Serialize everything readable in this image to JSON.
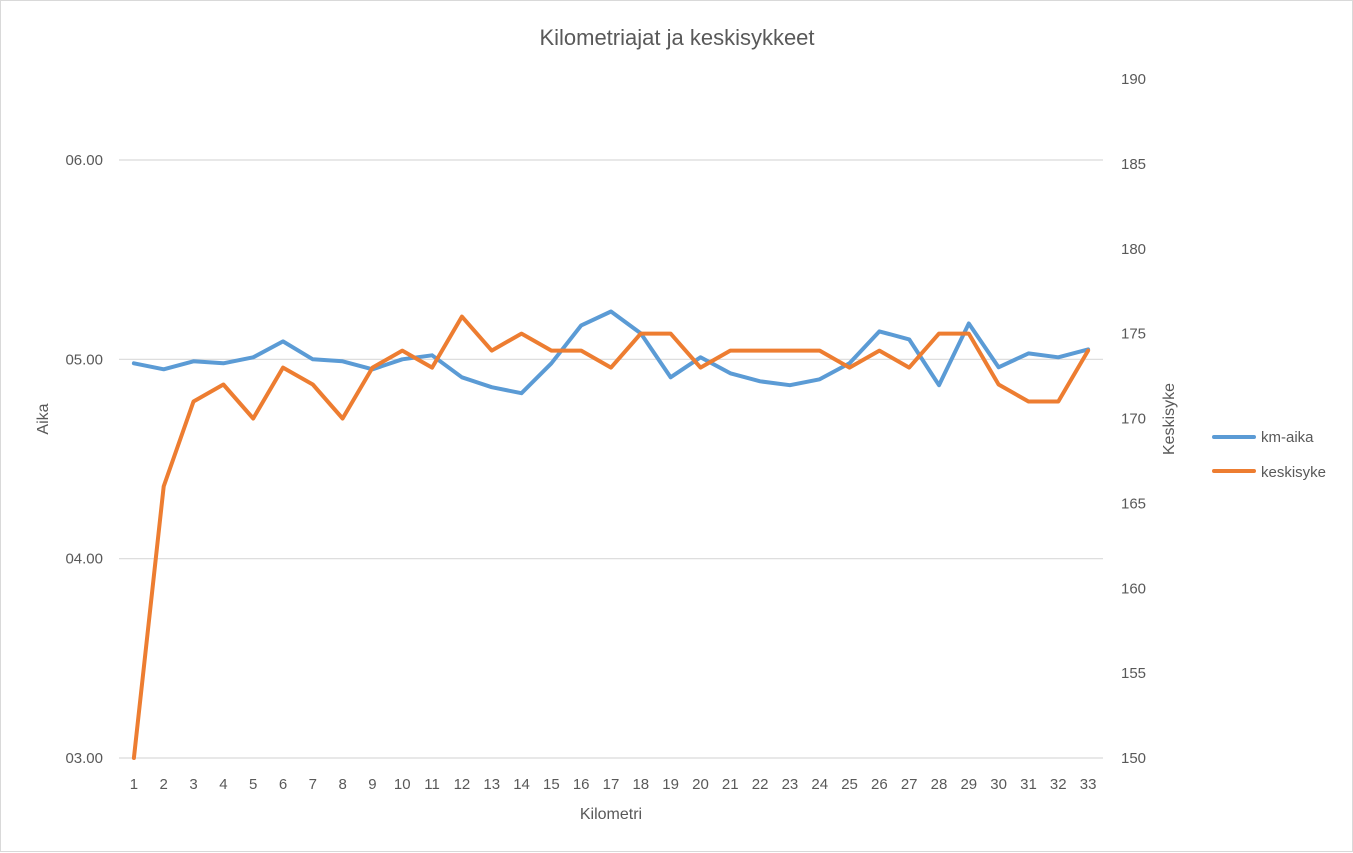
{
  "chart_data": {
    "type": "line",
    "title": "Kilometriajat ja keskisykkeet",
    "xlabel": "Kilometri",
    "ylabel_left": "Aika",
    "ylabel_right": "Keskisyke",
    "categories": [
      "1",
      "2",
      "3",
      "4",
      "5",
      "6",
      "7",
      "8",
      "9",
      "10",
      "11",
      "12",
      "13",
      "14",
      "15",
      "16",
      "17",
      "18",
      "19",
      "20",
      "21",
      "22",
      "23",
      "24",
      "25",
      "26",
      "27",
      "28",
      "29",
      "30",
      "31",
      "32",
      "33"
    ],
    "left_axis": {
      "ticks": [
        "03.00",
        "04.00",
        "05.00",
        "06.00"
      ],
      "range_minutes": [
        3,
        6
      ],
      "grid": true
    },
    "right_axis": {
      "ticks": [
        "150",
        "155",
        "160",
        "165",
        "170",
        "175",
        "180",
        "185",
        "190"
      ],
      "range": [
        150,
        190
      ]
    },
    "legend_position": "right",
    "series": [
      {
        "name": "km-aika",
        "axis": "left",
        "color": "#5b9bd5",
        "values_minutes": [
          4.98,
          4.95,
          4.99,
          4.98,
          5.01,
          5.09,
          5.0,
          4.99,
          4.95,
          5.0,
          5.02,
          4.91,
          4.86,
          4.83,
          4.98,
          5.17,
          5.24,
          5.13,
          4.91,
          5.01,
          4.93,
          4.89,
          4.87,
          4.9,
          4.98,
          5.14,
          5.1,
          4.87,
          5.18,
          4.96,
          5.03,
          5.01,
          5.05
        ]
      },
      {
        "name": "keskisyke",
        "axis": "right",
        "color": "#ed7d31",
        "values": [
          150,
          166,
          171,
          172,
          170,
          173,
          172,
          170,
          173,
          174,
          173,
          176,
          174,
          175,
          174,
          174,
          173,
          175,
          175,
          173,
          174,
          174,
          174,
          174,
          173,
          174,
          173,
          175,
          175,
          172,
          171,
          171,
          174
        ]
      }
    ]
  }
}
